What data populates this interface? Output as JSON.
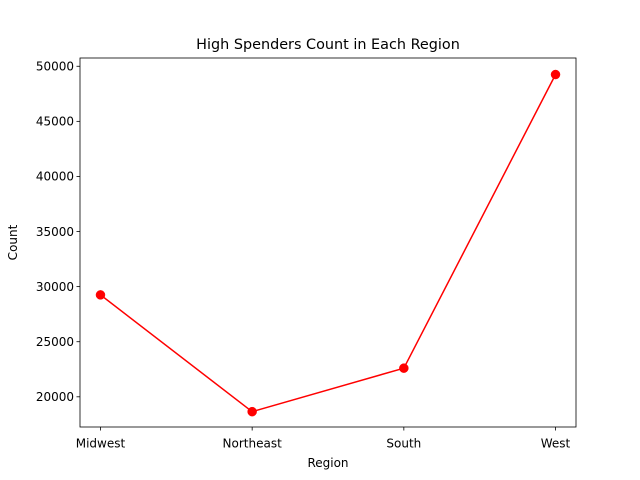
{
  "chart_data": {
    "type": "line",
    "title": "High Spenders Count in Each Region",
    "xlabel": "Region",
    "ylabel": "Count",
    "categories": [
      "Midwest",
      "Northeast",
      "South",
      "West"
    ],
    "series": [
      {
        "values": [
          29250,
          18650,
          22600,
          49250
        ],
        "color": "#ff0000",
        "marker": "circle"
      }
    ],
    "ylim": [
      17260,
      50750
    ],
    "yticks": [
      20000,
      25000,
      30000,
      35000,
      40000,
      45000,
      50000
    ],
    "grid": false,
    "legend": "none"
  }
}
